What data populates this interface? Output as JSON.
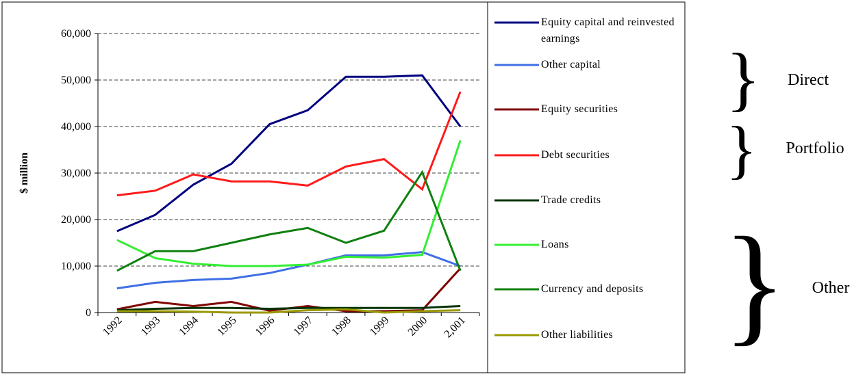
{
  "chart_data": {
    "type": "line",
    "y_label": "$ million",
    "categories": [
      "1992",
      "1993",
      "1994",
      "1995",
      "1996",
      "1997",
      "1998",
      "1999",
      "2000",
      "2,001"
    ],
    "ylim": [
      0,
      60000
    ],
    "yticks": [
      0,
      {
        "value": 10000,
        "label": "10,000"
      },
      {
        "value": 20000,
        "label": "20,000"
      },
      {
        "value": 30000,
        "label": "30,000"
      },
      {
        "value": 40000,
        "label": "40,000"
      },
      {
        "value": 50000,
        "label": "50,000"
      },
      {
        "value": 60000,
        "label": "60,000"
      }
    ],
    "grid": true,
    "legend": "right",
    "series": [
      {
        "name": "Equity capital and reinvested earnings",
        "color": "#000080",
        "values": [
          17500,
          21000,
          27500,
          32000,
          40500,
          43500,
          50700,
          50700,
          51000,
          40000
        ]
      },
      {
        "name": "Other capital",
        "color": "#3f6fe6",
        "values": [
          5200,
          6400,
          7000,
          7300,
          8500,
          10300,
          12300,
          12300,
          13000,
          10000
        ]
      },
      {
        "name": "Equity securities",
        "color": "#800000",
        "values": [
          700,
          2300,
          1400,
          2300,
          400,
          1400,
          300,
          300,
          500,
          9500
        ]
      },
      {
        "name": "Debt securities",
        "color": "#ff1a1a",
        "values": [
          25200,
          26200,
          29700,
          28200,
          28200,
          27300,
          31400,
          33000,
          26500,
          47500
        ]
      },
      {
        "name": "Trade credits",
        "color": "#003300",
        "values": [
          500,
          800,
          1000,
          1000,
          800,
          1000,
          1000,
          1000,
          1000,
          1400
        ]
      },
      {
        "name": "Loans",
        "color": "#33ee33",
        "values": [
          15600,
          11700,
          10500,
          10000,
          10000,
          10300,
          12000,
          11800,
          12400,
          37000
        ]
      },
      {
        "name": "Currency and deposits",
        "color": "#108010",
        "values": [
          9000,
          13200,
          13200,
          15000,
          16800,
          18200,
          15000,
          17600,
          30200,
          9000
        ]
      },
      {
        "name": "Other liabilities",
        "color": "#999900",
        "values": [
          300,
          300,
          200,
          0,
          0,
          500,
          700,
          0,
          300,
          500
        ]
      }
    ],
    "annotations": [
      "Direct",
      "Portfolio",
      "Other"
    ]
  }
}
